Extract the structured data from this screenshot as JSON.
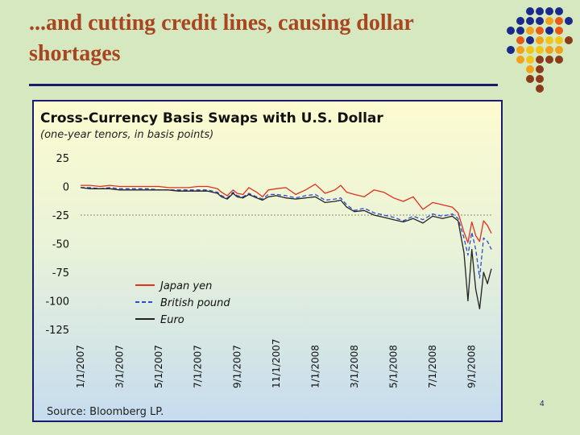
{
  "slide": {
    "title": "...and cutting credit lines, causing dollar shortages",
    "page_number": "4"
  },
  "colors": {
    "background": "#d6e8c0",
    "title": "#a8461f",
    "rule": "#1a1a6e",
    "dot_palette": [
      "#1a2a8a",
      "#f2a11a",
      "#8b3a1a",
      "#e85a14",
      "#f0c419"
    ]
  },
  "chart_data": {
    "type": "line",
    "title": "Cross-Currency Basis Swaps with U.S. Dollar",
    "subtitle": "(one-year tenors, in basis points)",
    "source": "Source: Bloomberg LP.",
    "ylim": [
      -125,
      25
    ],
    "yticks": [
      25,
      0,
      -25,
      -50,
      -75,
      -100,
      -125
    ],
    "ytick_labels": [
      "25",
      "0",
      "-25",
      "-50",
      "-75",
      "-100",
      "-125"
    ],
    "reference_line": -25,
    "x_range": [
      0,
      21
    ],
    "xtick_positions": [
      0,
      2,
      4,
      6,
      8,
      10,
      12,
      14,
      16,
      18,
      20
    ],
    "xtick_labels": [
      "1/1/2007",
      "3/1/2007",
      "5/1/2007",
      "7/1/2007",
      "9/1/2007",
      "11/1/2007",
      "1/1/2008",
      "3/1/2008",
      "5/1/2008",
      "7/1/2008",
      "9/1/2008"
    ],
    "x_unit": "months since 1/1/2007",
    "series": [
      {
        "name": "Japan yen",
        "color": "#e0301e",
        "dash": "solid",
        "x": [
          0,
          0.5,
          1,
          1.5,
          2,
          2.5,
          3,
          3.5,
          4,
          4.5,
          5,
          5.5,
          6,
          6.5,
          7,
          7.2,
          7.5,
          7.8,
          8,
          8.3,
          8.6,
          9,
          9.3,
          9.6,
          10,
          10.5,
          11,
          11.5,
          12,
          12.5,
          13,
          13.3,
          13.6,
          14,
          14.5,
          15,
          15.5,
          16,
          16.5,
          17,
          17.5,
          18,
          18.5,
          19,
          19.3,
          19.6,
          19.8,
          20,
          20.2,
          20.4,
          20.6,
          20.8,
          21
        ],
        "values": [
          1,
          1,
          0,
          1,
          0,
          0,
          0,
          0,
          0,
          -1,
          -1,
          -1,
          0,
          0,
          -2,
          -5,
          -8,
          -3,
          -6,
          -7,
          -1,
          -5,
          -9,
          -3,
          -2,
          -1,
          -7,
          -3,
          2,
          -6,
          -3,
          1,
          -5,
          -7,
          -9,
          -3,
          -5,
          -10,
          -13,
          -9,
          -20,
          -14,
          -16,
          -18,
          -23,
          -40,
          -49,
          -31,
          -43,
          -48,
          -30,
          -34,
          -41
        ]
      },
      {
        "name": "British pound",
        "color": "#2a4bd7",
        "dash": "dashed",
        "x": [
          0,
          0.5,
          1,
          1.5,
          2,
          2.5,
          3,
          3.5,
          4,
          4.5,
          5,
          5.5,
          6,
          6.5,
          7,
          7.2,
          7.5,
          7.8,
          8,
          8.3,
          8.6,
          9,
          9.3,
          9.6,
          10,
          10.5,
          11,
          11.5,
          12,
          12.5,
          13,
          13.3,
          13.6,
          14,
          14.5,
          15,
          15.5,
          16,
          16.5,
          17,
          17.5,
          18,
          18.5,
          19,
          19.3,
          19.6,
          19.8,
          20,
          20.2,
          20.4,
          20.6,
          20.8,
          21
        ],
        "values": [
          -1,
          -1,
          -2,
          -1,
          -2,
          -2,
          -2,
          -2,
          -3,
          -3,
          -3,
          -3,
          -3,
          -3,
          -5,
          -8,
          -10,
          -5,
          -8,
          -9,
          -6,
          -9,
          -11,
          -7,
          -7,
          -8,
          -10,
          -8,
          -7,
          -12,
          -11,
          -10,
          -16,
          -21,
          -19,
          -23,
          -25,
          -27,
          -30,
          -26,
          -29,
          -24,
          -26,
          -24,
          -28,
          -45,
          -60,
          -40,
          -55,
          -80,
          -45,
          -48,
          -55
        ]
      },
      {
        "name": "Euro",
        "color": "#222222",
        "dash": "solid",
        "x": [
          0,
          0.5,
          1,
          1.5,
          2,
          2.5,
          3,
          3.5,
          4,
          4.5,
          5,
          5.5,
          6,
          6.5,
          7,
          7.2,
          7.5,
          7.8,
          8,
          8.3,
          8.6,
          9,
          9.3,
          9.6,
          10,
          10.5,
          11,
          11.5,
          12,
          12.5,
          13,
          13.3,
          13.6,
          14,
          14.5,
          15,
          15.5,
          16,
          16.5,
          17,
          17.5,
          18,
          18.5,
          19,
          19.3,
          19.6,
          19.8,
          20,
          20.2,
          20.4,
          20.6,
          20.8,
          21
        ],
        "values": [
          -1,
          -2,
          -2,
          -2,
          -3,
          -3,
          -3,
          -3,
          -3,
          -3,
          -4,
          -4,
          -4,
          -4,
          -6,
          -9,
          -11,
          -6,
          -9,
          -10,
          -7,
          -10,
          -12,
          -9,
          -8,
          -10,
          -11,
          -10,
          -9,
          -14,
          -13,
          -12,
          -18,
          -22,
          -21,
          -25,
          -27,
          -29,
          -31,
          -28,
          -32,
          -26,
          -28,
          -26,
          -30,
          -58,
          -100,
          -55,
          -90,
          -107,
          -75,
          -85,
          -72
        ]
      }
    ],
    "legend_position": "lower-left"
  }
}
